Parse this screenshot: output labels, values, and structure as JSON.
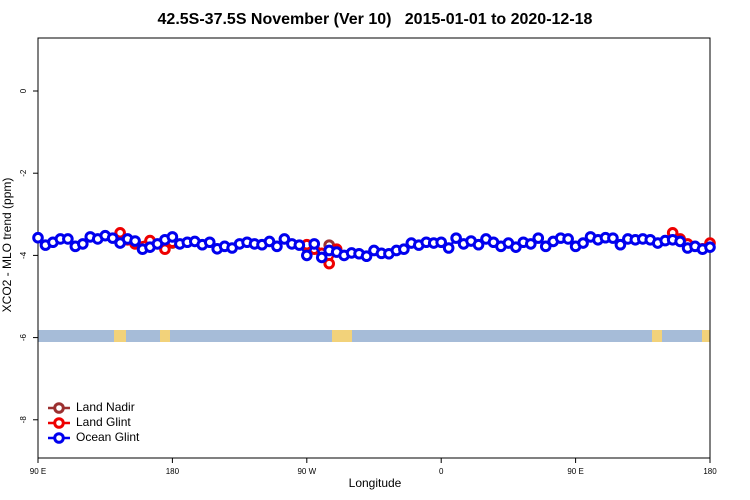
{
  "chart_data": {
    "type": "line",
    "title": "42.5S-37.5S November (Ver 10)   2015-01-01 to 2020-12-18",
    "x_label": "Longitude",
    "y_label": "XCO2 - MLO trend (ppm)",
    "xlim": [
      90,
      540
    ],
    "xticks": [
      {
        "value": 90,
        "label": "90 E"
      },
      {
        "value": 180,
        "label": "180"
      },
      {
        "value": 270,
        "label": "90 W"
      },
      {
        "value": 360,
        "label": "0"
      },
      {
        "value": 450,
        "label": "90 E"
      },
      {
        "value": 540,
        "label": "180"
      }
    ],
    "ylim": [
      -8.93,
      1.29
    ],
    "yticks": [
      0,
      -2,
      -4,
      -6,
      -8
    ],
    "legend": "bottom-left",
    "series": [
      {
        "name": "Land Nadir",
        "color": "#9b3030",
        "x": [
          180,
          null,
          285
        ],
        "values": [
          -3.7,
          null,
          -3.75
        ]
      },
      {
        "name": "Land Glint",
        "color": "#ee0000",
        "x": [
          145,
          150,
          155,
          165,
          175,
          180,
          null,
          270,
          275,
          280,
          285,
          290,
          null,
          515,
          520,
          525,
          535,
          540
        ],
        "values": [
          -3.45,
          -3.62,
          -3.72,
          -3.64,
          -3.85,
          -3.68,
          null,
          -3.74,
          -3.85,
          -3.95,
          -4.2,
          -3.85,
          null,
          -3.45,
          -3.6,
          -3.72,
          -3.84,
          -3.7
        ]
      },
      {
        "name": "Ocean Glint",
        "color": "#0000ee",
        "x": [
          90,
          95,
          100,
          105,
          110,
          115,
          120,
          125,
          130,
          135,
          140,
          145,
          150,
          155,
          160,
          165,
          170,
          175,
          180,
          185,
          190,
          195,
          200,
          205,
          210,
          215,
          220,
          225,
          230,
          235,
          240,
          245,
          250,
          255,
          260,
          265,
          270,
          275,
          280,
          285,
          290,
          295,
          300,
          305,
          310,
          315,
          320,
          325,
          330,
          335,
          340,
          345,
          350,
          355,
          360,
          365,
          370,
          375,
          380,
          385,
          390,
          395,
          400,
          405,
          410,
          415,
          420,
          425,
          430,
          435,
          440,
          445,
          450,
          455,
          460,
          465,
          470,
          475,
          480,
          485,
          490,
          495,
          500,
          505,
          510,
          515,
          520,
          525,
          530,
          535,
          540
        ],
        "values": [
          -3.57,
          -3.75,
          -3.68,
          -3.6,
          -3.6,
          -3.78,
          -3.72,
          -3.55,
          -3.6,
          -3.52,
          -3.58,
          -3.7,
          -3.6,
          -3.65,
          -3.85,
          -3.8,
          -3.72,
          -3.62,
          -3.55,
          -3.72,
          -3.68,
          -3.66,
          -3.74,
          -3.68,
          -3.84,
          -3.78,
          -3.82,
          -3.72,
          -3.68,
          -3.72,
          -3.74,
          -3.66,
          -3.78,
          -3.6,
          -3.72,
          -3.75,
          -4.0,
          -3.72,
          -4.05,
          -3.88,
          -3.92,
          -4.0,
          -3.94,
          -3.96,
          -4.02,
          -3.88,
          -3.95,
          -3.96,
          -3.88,
          -3.85,
          -3.7,
          -3.75,
          -3.68,
          -3.7,
          -3.68,
          -3.82,
          -3.58,
          -3.72,
          -3.65,
          -3.74,
          -3.6,
          -3.68,
          -3.78,
          -3.7,
          -3.8,
          -3.68,
          -3.72,
          -3.58,
          -3.78,
          -3.66,
          -3.58,
          -3.6,
          -3.78,
          -3.7,
          -3.55,
          -3.62,
          -3.57,
          -3.58,
          -3.74,
          -3.6,
          -3.62,
          -3.6,
          -3.62,
          -3.7,
          -3.64,
          -3.62,
          -3.66,
          -3.82,
          -3.78,
          -3.85,
          -3.8
        ]
      }
    ]
  }
}
